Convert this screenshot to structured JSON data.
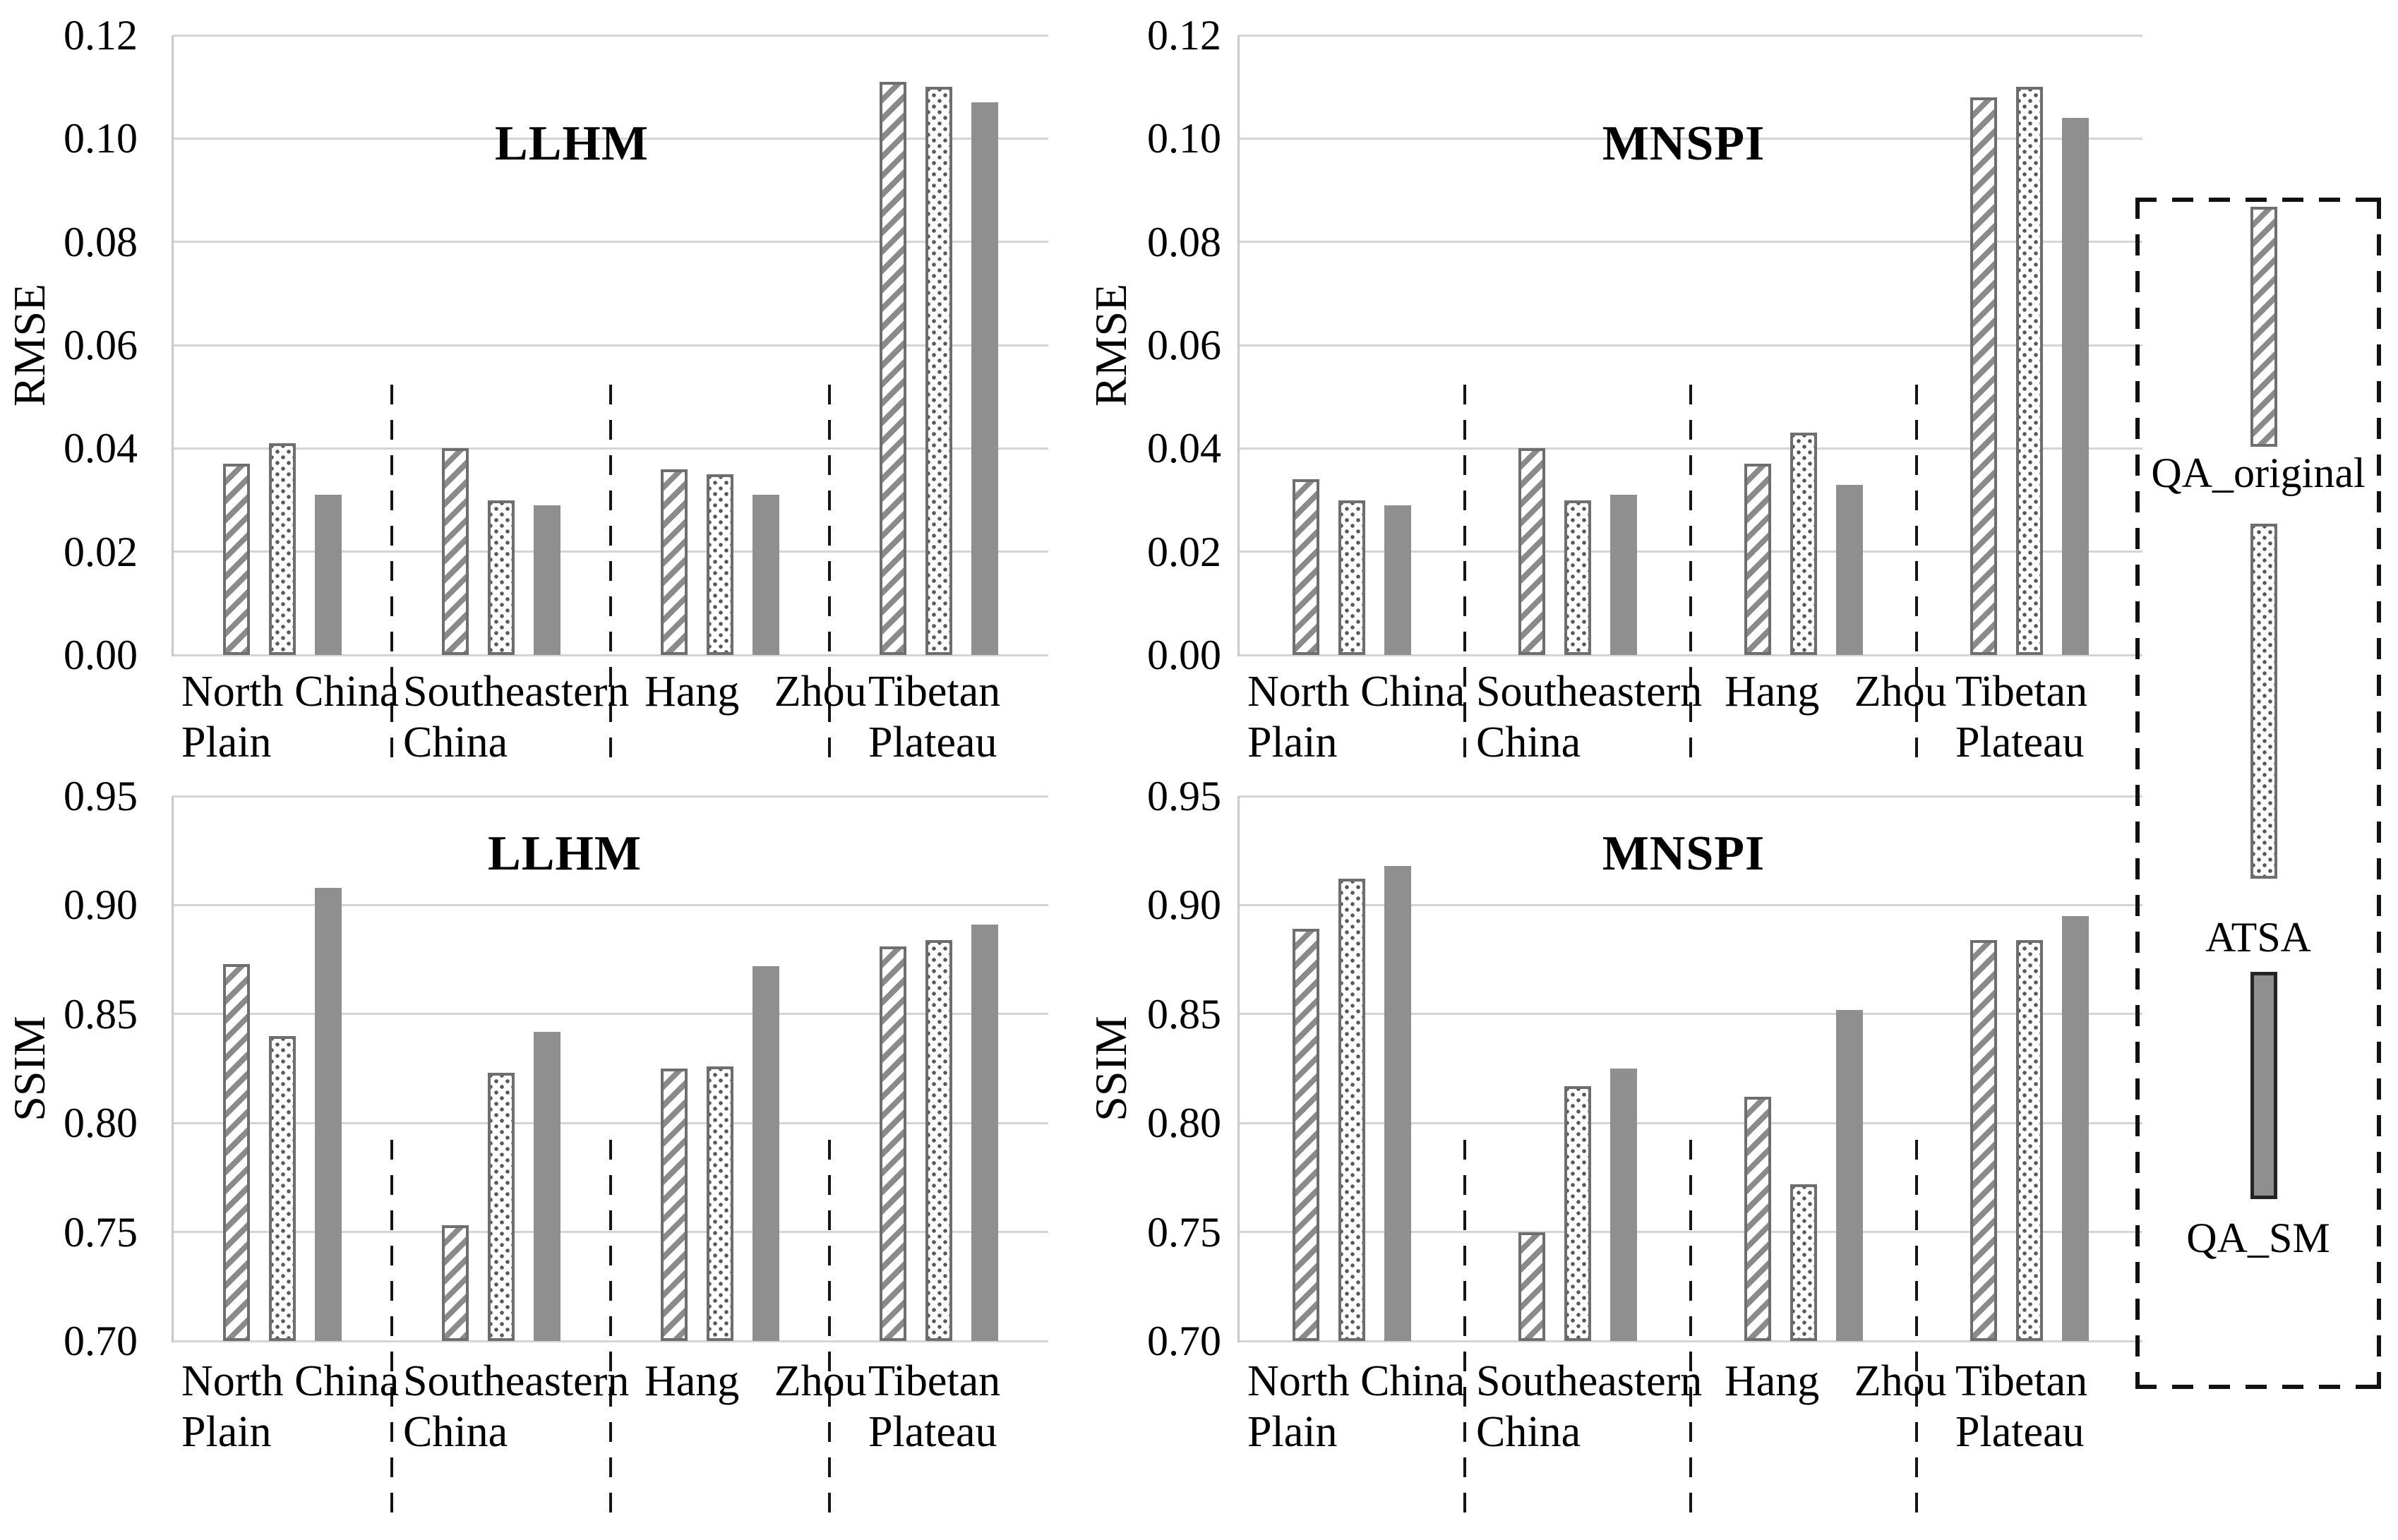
{
  "figure": {
    "description": "Quantitative comparison of cloud removal results: RMSE and SSIM of LLHM and MNSPI methods over four regions",
    "regions_note": "dashed vertical lines separate regions; legend in dashed box at right"
  },
  "colors": {
    "bar_solid_gray": "#8f8f8f",
    "hatch_stripe_gray": "#8a8a8a",
    "bar_border_gray": "#6e6e6e",
    "gridline_gray": "#d4d4d4",
    "separator_black": "#151515",
    "text_black": "#000000",
    "background": "#ffffff"
  },
  "legend": {
    "items": [
      {
        "label": "QA_original",
        "pattern": "hatch",
        "swatch": "diagonal-hatch-bar"
      },
      {
        "label": "ATSA",
        "pattern": "dots",
        "swatch": "dotted-bar"
      },
      {
        "label": "QA_SM",
        "pattern": "solid",
        "swatch": "solid-gray-bar"
      }
    ]
  },
  "chart_data": [
    {
      "id": "llhm-rmse",
      "type": "bar",
      "title": "LLHM",
      "ylabel": "RMSE",
      "xlabel": "",
      "ylim": [
        0,
        0.12
      ],
      "ytick_step": 0.02,
      "yticks": [
        "0.00",
        "0.02",
        "0.04",
        "0.06",
        "0.08",
        "0.10",
        "0.12"
      ],
      "grid": true,
      "categories": [
        "North China Plain",
        "Southeastern China",
        "Hang Zhou",
        "Tibetan Plateau"
      ],
      "categories_lines": [
        [
          "North China",
          "Plain"
        ],
        [
          "Southeastern",
          "China"
        ],
        [
          "Hang Zhou",
          ""
        ],
        [
          "Tibetan",
          "Plateau"
        ]
      ],
      "series": [
        {
          "name": "QA_original",
          "values": [
            0.037,
            0.04,
            0.036,
            0.111
          ]
        },
        {
          "name": "ATSA",
          "values": [
            0.041,
            0.03,
            0.035,
            0.11
          ]
        },
        {
          "name": "QA_SM",
          "values": [
            0.031,
            0.029,
            0.031,
            0.107
          ]
        }
      ]
    },
    {
      "id": "mnspi-rmse",
      "type": "bar",
      "title": "MNSPI",
      "ylabel": "RMSE",
      "xlabel": "",
      "ylim": [
        0,
        0.12
      ],
      "ytick_step": 0.02,
      "yticks": [
        "0.00",
        "0.02",
        "0.04",
        "0.06",
        "0.08",
        "0.10",
        "0.12"
      ],
      "grid": true,
      "categories": [
        "North China Plain",
        "Southeastern China",
        "Hang Zhou",
        "Tibetan Plateau"
      ],
      "categories_lines": [
        [
          "North China",
          "Plain"
        ],
        [
          "Southeastern",
          "China"
        ],
        [
          "Hang Zhou",
          ""
        ],
        [
          "Tibetan",
          "Plateau"
        ]
      ],
      "series": [
        {
          "name": "QA_original",
          "values": [
            0.034,
            0.04,
            0.037,
            0.108
          ]
        },
        {
          "name": "ATSA",
          "values": [
            0.03,
            0.03,
            0.043,
            0.11
          ]
        },
        {
          "name": "QA_SM",
          "values": [
            0.029,
            0.031,
            0.033,
            0.104
          ]
        }
      ]
    },
    {
      "id": "llhm-ssim",
      "type": "bar",
      "title": "LLHM",
      "ylabel": "SSIM",
      "xlabel": "",
      "ylim": [
        0.7,
        0.95
      ],
      "ytick_step": 0.05,
      "yticks": [
        "0.70",
        "0.75",
        "0.80",
        "0.85",
        "0.90",
        "0.95"
      ],
      "grid": true,
      "categories": [
        "North China Plain",
        "Southeastern China",
        "Hang Zhou",
        "Tibetan Plateau"
      ],
      "categories_lines": [
        [
          "North China",
          "Plain"
        ],
        [
          "Southeastern",
          "China"
        ],
        [
          "Hang Zhou",
          ""
        ],
        [
          "Tibetan",
          "Plateau"
        ]
      ],
      "series": [
        {
          "name": "QA_original",
          "values": [
            0.873,
            0.753,
            0.825,
            0.881
          ]
        },
        {
          "name": "ATSA",
          "values": [
            0.84,
            0.823,
            0.826,
            0.884
          ]
        },
        {
          "name": "QA_SM",
          "values": [
            0.908,
            0.842,
            0.872,
            0.891
          ]
        }
      ]
    },
    {
      "id": "mnspi-ssim",
      "type": "bar",
      "title": "MNSPI",
      "ylabel": "SSIM",
      "xlabel": "",
      "ylim": [
        0.7,
        0.95
      ],
      "ytick_step": 0.05,
      "yticks": [
        "0.70",
        "0.75",
        "0.80",
        "0.85",
        "0.90",
        "0.95"
      ],
      "grid": true,
      "categories": [
        "North China Plain",
        "Southeastern China",
        "Hang Zhou",
        "Tibetan Plateau"
      ],
      "categories_lines": [
        [
          "North China",
          "Plain"
        ],
        [
          "Southeastern",
          "China"
        ],
        [
          "Hang Zhou",
          ""
        ],
        [
          "Tibetan",
          "Plateau"
        ]
      ],
      "series": [
        {
          "name": "QA_original",
          "values": [
            0.889,
            0.75,
            0.812,
            0.884
          ]
        },
        {
          "name": "ATSA",
          "values": [
            0.912,
            0.817,
            0.772,
            0.884
          ]
        },
        {
          "name": "QA_SM",
          "values": [
            0.918,
            0.825,
            0.852,
            0.895
          ]
        }
      ]
    }
  ]
}
